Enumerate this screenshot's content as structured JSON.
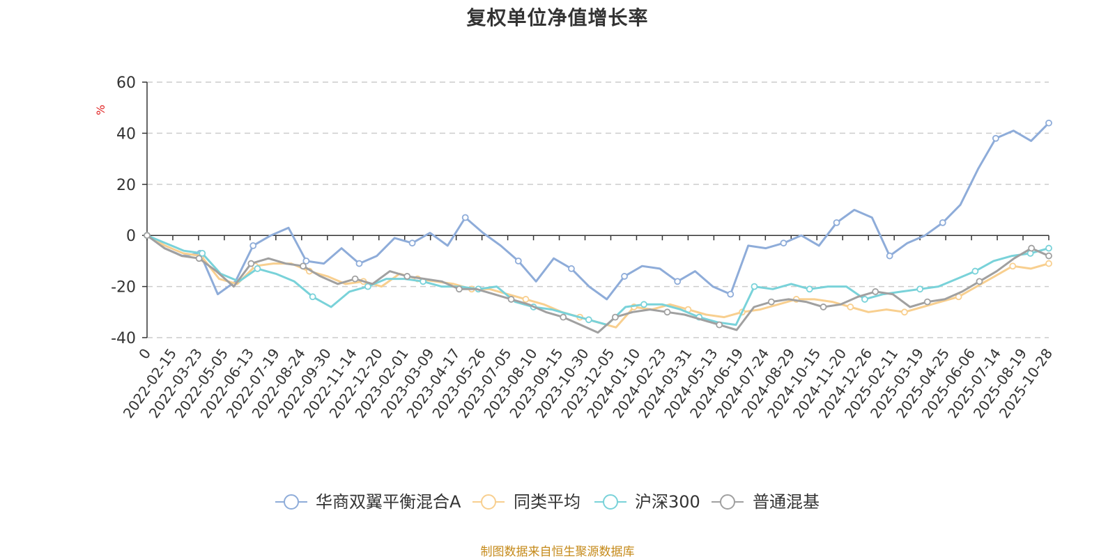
{
  "chart_data": {
    "type": "line",
    "title": "复权单位净值增长率",
    "y_unit": "%",
    "ylim": [
      -40,
      60
    ],
    "y_ticks": [
      "60",
      "40",
      "20",
      "0",
      "-20",
      "-40"
    ],
    "x_ticks": [
      "0",
      "2022-02-15",
      "2022-03-23",
      "2022-05-05",
      "2022-06-13",
      "2022-07-19",
      "2022-08-24",
      "2022-09-30",
      "2022-11-14",
      "2022-12-20",
      "2023-02-01",
      "2023-03-09",
      "2023-04-17",
      "2023-05-26",
      "2023-07-05",
      "2023-08-10",
      "2023-09-15",
      "2023-10-30",
      "2023-12-05",
      "2024-01-10",
      "2024-02-23",
      "2024-03-31",
      "2024-05-13",
      "2024-06-19",
      "2024-07-24",
      "2024-08-29",
      "2024-10-15",
      "2024-11-20",
      "2024-12-26",
      "2025-02-11",
      "2025-03-19",
      "2025-04-25",
      "2025-06-06",
      "2025-07-14",
      "2025-08-19",
      "2025-10-28"
    ],
    "grid": "horizontal dashed",
    "legend_position": "bottom",
    "series": [
      {
        "name": "华商双翼平衡混合A",
        "color": "#8eacd9",
        "values": [
          0,
          -5,
          -8,
          -7,
          -23,
          -18,
          -4,
          0,
          3,
          -10,
          -11,
          -5,
          -11,
          -8,
          -1,
          -3,
          1,
          -4,
          7,
          1,
          -4,
          -10,
          -18,
          -9,
          -13,
          -20,
          -25,
          -16,
          -12,
          -13,
          -18,
          -14,
          -20,
          -23,
          -4,
          -5,
          -3,
          0,
          -4,
          5,
          10,
          7,
          -8,
          -3,
          0,
          5,
          12,
          26,
          38,
          41,
          37,
          44
        ]
      },
      {
        "name": "同类平均",
        "color": "#f8cf8f",
        "values": [
          0,
          -4,
          -7,
          -8,
          -17,
          -19,
          -12,
          -11,
          -11,
          -14,
          -16,
          -19,
          -18,
          -20,
          -15,
          -17,
          -18,
          -19,
          -21,
          -21,
          -23,
          -25,
          -27,
          -30,
          -32,
          -34,
          -36,
          -28,
          -29,
          -27,
          -29,
          -31,
          -32,
          -30,
          -29,
          -27,
          -25,
          -25,
          -26,
          -28,
          -30,
          -29,
          -30,
          -28,
          -26,
          -24,
          -20,
          -16,
          -12,
          -13,
          -11
        ]
      },
      {
        "name": "沪深300",
        "color": "#79d2d9",
        "values": [
          0,
          -3,
          -6,
          -7,
          -15,
          -18,
          -13,
          -15,
          -18,
          -24,
          -28,
          -22,
          -20,
          -17,
          -17,
          -18,
          -20,
          -20,
          -21,
          -20,
          -26,
          -28,
          -29,
          -31,
          -33,
          -35,
          -28,
          -27,
          -27,
          -29,
          -32,
          -34,
          -35,
          -20,
          -21,
          -19,
          -21,
          -20,
          -20,
          -25,
          -23,
          -22,
          -21,
          -20,
          -17,
          -14,
          -10,
          -8,
          -7,
          -5
        ]
      },
      {
        "name": "普通混基",
        "color": "#a0a0a0",
        "values": [
          0,
          -5,
          -8,
          -9,
          -14,
          -20,
          -11,
          -9,
          -11,
          -12,
          -16,
          -19,
          -17,
          -19,
          -14,
          -16,
          -17,
          -18,
          -21,
          -21,
          -23,
          -25,
          -27,
          -30,
          -32,
          -35,
          -38,
          -32,
          -30,
          -29,
          -30,
          -31,
          -33,
          -35,
          -37,
          -28,
          -26,
          -25,
          -26,
          -28,
          -27,
          -24,
          -22,
          -23,
          -28,
          -26,
          -25,
          -22,
          -18,
          -14,
          -9,
          -5,
          -8
        ]
      }
    ]
  },
  "source_note": "制图数据来自恒生聚源数据库"
}
